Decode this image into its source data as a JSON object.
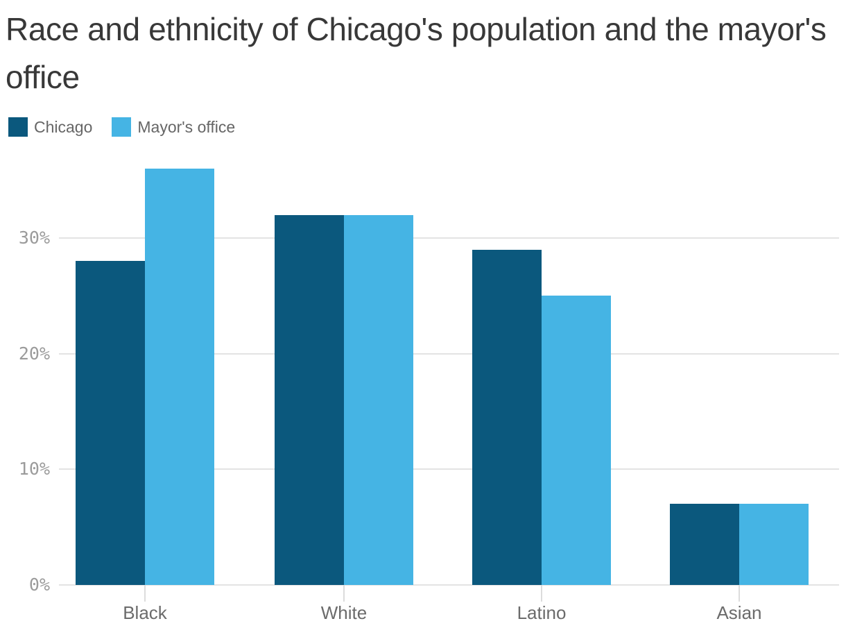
{
  "header": {
    "title": "Race and ethnicity of Chicago's population and the mayor's office"
  },
  "legend": {
    "items": [
      {
        "label": "Chicago",
        "color": "#0B587D"
      },
      {
        "label": "Mayor's office",
        "color": "#45B4E4"
      }
    ]
  },
  "chart_data": {
    "type": "bar",
    "title": "Race and ethnicity of Chicago's population and the mayor's office",
    "categories": [
      "Black",
      "White",
      "Latino",
      "Asian"
    ],
    "series": [
      {
        "name": "Chicago",
        "color": "#0B587D",
        "values": [
          28,
          32,
          29,
          7
        ]
      },
      {
        "name": "Mayor's office",
        "color": "#45B4E4",
        "values": [
          36,
          32,
          25,
          7
        ]
      }
    ],
    "unit": "%",
    "xlabel": "",
    "ylabel": "",
    "ylim": [
      0,
      36
    ],
    "yticks": [
      0,
      10,
      20,
      30
    ],
    "ytick_labels": [
      "0%",
      "10%",
      "20%",
      "30%"
    ],
    "grid": "horizontal-only",
    "legend_position": "top-left",
    "style": {
      "grid_color": "#e3e3e3",
      "xtick_mark_color": "#dcdcdc",
      "ytick_text_color": "#9b9b9b",
      "xtick_text_color": "#6b6b6b"
    }
  }
}
